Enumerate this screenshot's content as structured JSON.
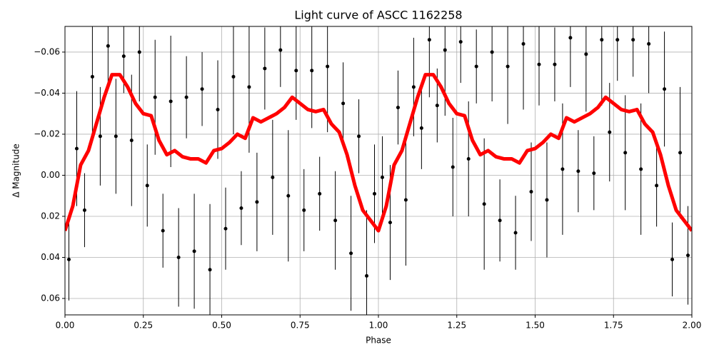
{
  "chart_data": {
    "type": "scatter",
    "title": "Light curve of ASCC 1162258",
    "xlabel": "Phase",
    "ylabel": "Δ Magnitude",
    "xlim": [
      0,
      2
    ],
    "ylim": [
      -0.0725,
      0.068
    ],
    "invert_y": true,
    "grid": true,
    "xticks": [
      {
        "value": 0,
        "label": "0.00"
      },
      {
        "value": 0.25,
        "label": "0.25"
      },
      {
        "value": 0.5,
        "label": "0.50"
      },
      {
        "value": 0.75,
        "label": "0.75"
      },
      {
        "value": 1,
        "label": "1.00"
      },
      {
        "value": 1.25,
        "label": "1.25"
      },
      {
        "value": 1.5,
        "label": "1.50"
      },
      {
        "value": 1.75,
        "label": "1.75"
      },
      {
        "value": 2,
        "label": "2.00"
      }
    ],
    "yticks": [
      {
        "value": -0.06,
        "label": "−0.06"
      },
      {
        "value": -0.04,
        "label": "−0.04"
      },
      {
        "value": -0.02,
        "label": "−0.02"
      },
      {
        "value": 0,
        "label": "0.00"
      },
      {
        "value": 0.02,
        "label": "0.02"
      },
      {
        "value": 0.04,
        "label": "0.04"
      },
      {
        "value": 0.06,
        "label": "0.06"
      }
    ],
    "series": [
      {
        "type": "errorbar",
        "color": "#000000",
        "x": [
          0.0125,
          0.0375,
          0.0625,
          0.0875,
          0.1125,
          0.1375,
          0.1625,
          0.1875,
          0.2125,
          0.2375,
          0.2625,
          0.2875,
          0.3125,
          0.3375,
          0.3625,
          0.3875,
          0.4125,
          0.4375,
          0.4625,
          0.4875,
          0.5125,
          0.5375,
          0.5625,
          0.5875,
          0.6125,
          0.6375,
          0.6625,
          0.6875,
          0.7125,
          0.7375,
          0.7625,
          0.7875,
          0.8125,
          0.8375,
          0.8625,
          0.8875,
          0.9125,
          0.9375,
          0.9625,
          0.9875,
          1.0125,
          1.0375,
          1.0625,
          1.0875,
          1.1125,
          1.1375,
          1.1625,
          1.1875,
          1.2125,
          1.2375,
          1.2625,
          1.2875,
          1.3125,
          1.3375,
          1.3625,
          1.3875,
          1.4125,
          1.4375,
          1.4625,
          1.4875,
          1.5125,
          1.5375,
          1.5625,
          1.5875,
          1.6125,
          1.6375,
          1.6625,
          1.6875,
          1.7125,
          1.7375,
          1.7625,
          1.7875,
          1.8125,
          1.8375,
          1.8625,
          1.8875,
          1.9125,
          1.9375,
          1.9625,
          1.9875
        ],
        "values": [
          0.041,
          -0.013,
          0.017,
          -0.048,
          -0.019,
          -0.063,
          -0.019,
          -0.058,
          -0.017,
          -0.06,
          0.005,
          -0.038,
          0.027,
          -0.036,
          0.04,
          -0.038,
          0.037,
          -0.042,
          0.046,
          -0.032,
          0.026,
          -0.048,
          0.016,
          -0.043,
          0.013,
          -0.052,
          0.001,
          -0.061,
          0.01,
          -0.051,
          0.017,
          -0.051,
          0.009,
          -0.053,
          0.022,
          -0.035,
          0.038,
          -0.019,
          0.049,
          0.009,
          0.001,
          0.023,
          -0.033,
          0.012,
          -0.043,
          -0.023,
          -0.066,
          -0.034,
          -0.061,
          -0.004,
          -0.065,
          -0.008,
          -0.053,
          0.014,
          -0.06,
          0.022,
          -0.053,
          0.028,
          -0.064,
          0.008,
          -0.054,
          0.012,
          -0.054,
          -0.003,
          -0.067,
          -0.002,
          -0.059,
          -0.001,
          -0.066,
          -0.021,
          -0.066,
          -0.011,
          -0.066,
          -0.003,
          -0.064,
          0.005,
          -0.042,
          0.041,
          -0.011,
          0.039
        ],
        "errors": [
          0.02,
          0.028,
          0.018,
          0.032,
          0.024,
          0.02,
          0.028,
          0.018,
          0.032,
          0.024,
          0.02,
          0.028,
          0.018,
          0.032,
          0.024,
          0.02,
          0.028,
          0.018,
          0.032,
          0.024,
          0.02,
          0.028,
          0.018,
          0.032,
          0.024,
          0.02,
          0.028,
          0.018,
          0.032,
          0.024,
          0.02,
          0.028,
          0.018,
          0.032,
          0.024,
          0.02,
          0.028,
          0.018,
          0.032,
          0.024,
          0.02,
          0.028,
          0.018,
          0.032,
          0.024,
          0.02,
          0.028,
          0.018,
          0.032,
          0.024,
          0.02,
          0.028,
          0.018,
          0.032,
          0.024,
          0.02,
          0.028,
          0.018,
          0.032,
          0.024,
          0.02,
          0.028,
          0.018,
          0.032,
          0.024,
          0.02,
          0.028,
          0.018,
          0.032,
          0.024,
          0.02,
          0.028,
          0.018,
          0.032,
          0.024,
          0.02,
          0.028,
          0.018,
          0.032,
          0.024
        ]
      },
      {
        "type": "line",
        "color": "#ff0000",
        "x": [
          0,
          0.025,
          0.05,
          0.075,
          0.1,
          0.125,
          0.15,
          0.175,
          0.2,
          0.225,
          0.25,
          0.275,
          0.3,
          0.325,
          0.35,
          0.375,
          0.4,
          0.425,
          0.45,
          0.475,
          0.5,
          0.525,
          0.55,
          0.575,
          0.6,
          0.625,
          0.65,
          0.675,
          0.7,
          0.725,
          0.75,
          0.775,
          0.8,
          0.825,
          0.85,
          0.875,
          0.9,
          0.925,
          0.95,
          0.975,
          1,
          1.025,
          1.05,
          1.075,
          1.1,
          1.125,
          1.15,
          1.175,
          1.2,
          1.225,
          1.25,
          1.275,
          1.3,
          1.325,
          1.35,
          1.375,
          1.4,
          1.425,
          1.45,
          1.475,
          1.5,
          1.525,
          1.55,
          1.575,
          1.6,
          1.625,
          1.65,
          1.675,
          1.7,
          1.725,
          1.75,
          1.775,
          1.8,
          1.825,
          1.85,
          1.875,
          1.9,
          1.925,
          1.95,
          1.975,
          2
        ],
        "values": [
          0.027,
          0.015,
          -0.005,
          -0.012,
          -0.025,
          -0.038,
          -0.049,
          -0.049,
          -0.043,
          -0.035,
          -0.03,
          -0.029,
          -0.017,
          -0.01,
          -0.012,
          -0.009,
          -0.008,
          -0.008,
          -0.006,
          -0.012,
          -0.013,
          -0.016,
          -0.02,
          -0.018,
          -0.028,
          -0.026,
          -0.028,
          -0.03,
          -0.033,
          -0.038,
          -0.035,
          -0.032,
          -0.031,
          -0.032,
          -0.025,
          -0.021,
          -0.01,
          0.005,
          0.017,
          0.022,
          0.027,
          0.015,
          -0.005,
          -0.012,
          -0.025,
          -0.038,
          -0.049,
          -0.049,
          -0.043,
          -0.035,
          -0.03,
          -0.029,
          -0.017,
          -0.01,
          -0.012,
          -0.009,
          -0.008,
          -0.008,
          -0.006,
          -0.012,
          -0.013,
          -0.016,
          -0.02,
          -0.018,
          -0.028,
          -0.026,
          -0.028,
          -0.03,
          -0.033,
          -0.038,
          -0.035,
          -0.032,
          -0.031,
          -0.032,
          -0.025,
          -0.021,
          -0.01,
          0.005,
          0.017,
          0.022,
          0.027
        ]
      }
    ]
  }
}
